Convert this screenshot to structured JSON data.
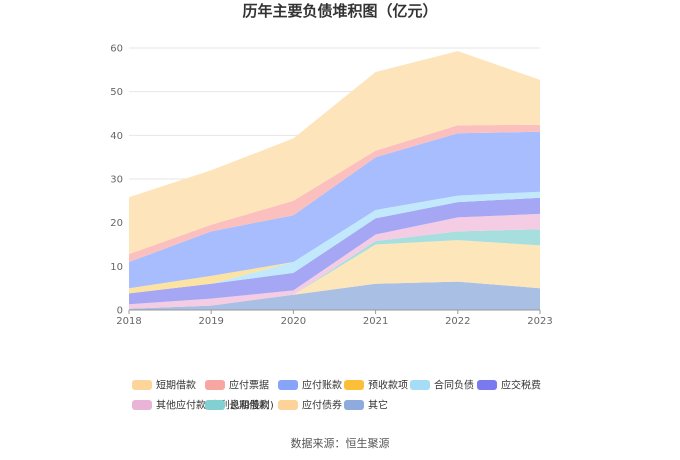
{
  "chart_data": {
    "type": "area",
    "stacked": true,
    "title": "历年主要负债堆积图（亿元）",
    "x": [
      "2018",
      "2019",
      "2020",
      "2021",
      "2022",
      "2023"
    ],
    "ylim": [
      0,
      60
    ],
    "yticks": [
      "0",
      "10",
      "20",
      "30",
      "40",
      "50",
      "60"
    ],
    "grid": true,
    "legend_position": "bottom",
    "series": [
      {
        "name": "其它",
        "color": "#a9bfe3",
        "values": [
          0.3,
          1.0,
          3.5,
          6.0,
          6.5,
          5.0
        ]
      },
      {
        "name": "应付债券",
        "color": "#fde6b9",
        "values": [
          0.0,
          0.0,
          0.0,
          9.0,
          9.5,
          9.8
        ]
      },
      {
        "name": "长期借款",
        "color": "#a7dfdf",
        "values": [
          0.0,
          0.0,
          0.0,
          0.8,
          2.0,
          3.7
        ]
      },
      {
        "name": "其他应付款(含利息和股利)",
        "color": "#f4cce3",
        "values": [
          1.0,
          1.6,
          1.0,
          1.5,
          3.2,
          3.5
        ]
      },
      {
        "name": "应交税费",
        "color": "#a5a7f5",
        "values": [
          2.5,
          3.4,
          4.0,
          3.7,
          3.5,
          3.7
        ]
      },
      {
        "name": "合同负债",
        "color": "#c1e9fb",
        "values": [
          0.0,
          0.0,
          2.5,
          1.9,
          1.5,
          1.4
        ]
      },
      {
        "name": "预收款项",
        "color": "#fde3a2",
        "values": [
          1.2,
          1.8,
          0.0,
          0.0,
          0.0,
          0.0
        ]
      },
      {
        "name": "应付账款",
        "color": "#a8bdfd",
        "values": [
          6.0,
          10.2,
          10.7,
          12.1,
          14.3,
          13.7
        ]
      },
      {
        "name": "应付票据",
        "color": "#fbc0bd",
        "values": [
          1.8,
          1.5,
          3.3,
          1.5,
          1.8,
          1.6
        ]
      },
      {
        "name": "短期借款",
        "color": "#fde4bb",
        "values": [
          13.0,
          12.5,
          14.3,
          18.0,
          17.0,
          10.3
        ]
      }
    ],
    "legend": [
      {
        "name": "短期借款",
        "color": "#fdd59a"
      },
      {
        "name": "应付票据",
        "color": "#f7a6a2"
      },
      {
        "name": "应付账款",
        "color": "#87a4f7"
      },
      {
        "name": "预收款项",
        "color": "#fbbf39"
      },
      {
        "name": "合同负债",
        "color": "#a7dcf6"
      },
      {
        "name": "应交税费",
        "color": "#7a79ef"
      },
      {
        "name": "其他应付款(含利息和股利)",
        "color": "#eab4d6"
      },
      {
        "name": "长期借款",
        "color": "#82d0d1"
      },
      {
        "name": "应付债券",
        "color": "#fdd39a"
      },
      {
        "name": "其它",
        "color": "#8faadc"
      }
    ]
  },
  "source_text": "数据来源：恒生聚源"
}
